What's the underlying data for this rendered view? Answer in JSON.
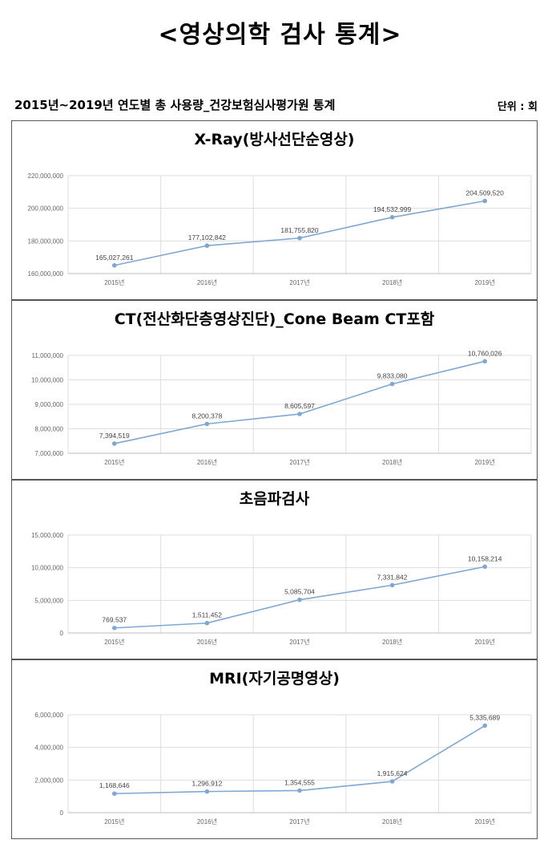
{
  "page": {
    "title": "<영상의학 검사 통계>",
    "subtitle": "2015년~2019년 연도별 총 사용량_건강보험심사평가원 통계",
    "unit": "단위 : 회"
  },
  "chart_data": [
    {
      "type": "line",
      "title": "X-Ray(방사선단순영상)",
      "categories": [
        "2015년",
        "2016년",
        "2017년",
        "2018년",
        "2019년"
      ],
      "values": [
        165027261,
        177102842,
        181755820,
        194532999,
        204509520
      ],
      "value_labels": [
        "165,027,261",
        "177,102,842",
        "181,755,820",
        "194,532,999",
        "204,509,520"
      ],
      "yticks": [
        "160,000,000",
        "180,000,000",
        "200,000,000",
        "220,000,000"
      ],
      "ylim": [
        160000000,
        220000000
      ],
      "grid": true,
      "color": "#7fa7d3"
    },
    {
      "type": "line",
      "title": "CT(전산화단층영상진단)_Cone Beam CT포함",
      "categories": [
        "2015년",
        "2016년",
        "2017년",
        "2018년",
        "2019년"
      ],
      "values": [
        7394519,
        8200378,
        8605597,
        9833080,
        10760026
      ],
      "value_labels": [
        "7,394,519",
        "8,200,378",
        "8,605,597",
        "9,833,080",
        "10,760,026"
      ],
      "yticks": [
        "7,000,000",
        "8,000,000",
        "9,000,000",
        "10,000,000",
        "11,000,000"
      ],
      "ylim": [
        7000000,
        11000000
      ],
      "grid": true,
      "color": "#7fa7d3"
    },
    {
      "type": "line",
      "title": "초음파검사",
      "categories": [
        "2015년",
        "2016년",
        "2017년",
        "2018년",
        "2019년"
      ],
      "values": [
        769537,
        1511452,
        5085704,
        7331842,
        10158214
      ],
      "value_labels": [
        "769,537",
        "1,511,452",
        "5,085,704",
        "7,331,842",
        "10,158,214"
      ],
      "yticks": [
        "0",
        "5,000,000",
        "10,000,000",
        "15,000,000"
      ],
      "ylim": [
        0,
        15000000
      ],
      "grid": true,
      "color": "#7fa7d3"
    },
    {
      "type": "line",
      "title": "MRI(자기공명영상)",
      "categories": [
        "2015년",
        "2016년",
        "2017년",
        "2018년",
        "2019년"
      ],
      "values": [
        1168646,
        1296912,
        1354555,
        1915624,
        5335689
      ],
      "value_labels": [
        "1,168,646",
        "1,296,912",
        "1,354,555",
        "1,915,624",
        "5,335,689"
      ],
      "yticks": [
        "0",
        "2,000,000",
        "4,000,000",
        "6,000,000"
      ],
      "ylim": [
        0,
        6000000
      ],
      "grid": true,
      "color": "#7fa7d3"
    }
  ]
}
